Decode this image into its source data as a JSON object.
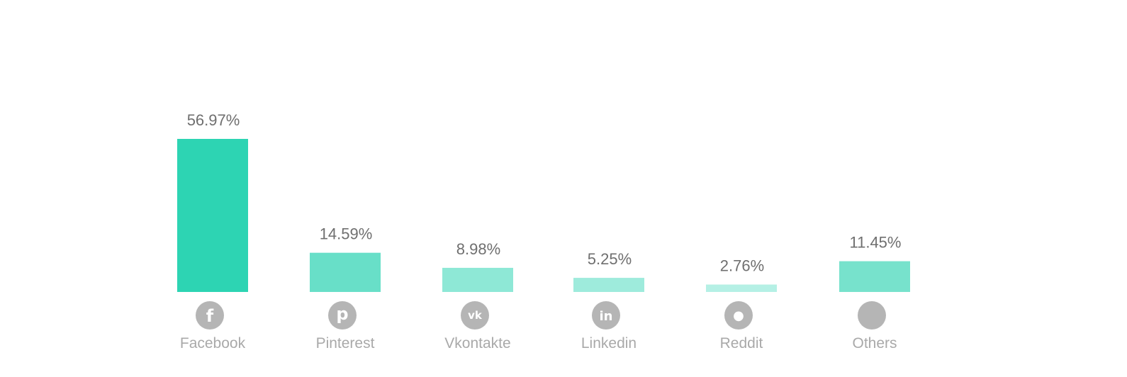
{
  "chart_data": {
    "type": "bar",
    "title": "",
    "xlabel": "",
    "ylabel": "",
    "ylim": [
      0,
      56.97
    ],
    "grid": false,
    "legend": "none",
    "value_suffix": "%",
    "categories": [
      "Facebook",
      "Pinterest",
      "Vkontakte",
      "Linkedin",
      "Reddit",
      "Others"
    ],
    "values": [
      56.97,
      14.59,
      8.98,
      5.25,
      2.76,
      11.45
    ],
    "data_labels": [
      "56.97%",
      "14.59%",
      "8.98%",
      "5.25%",
      "2.76%",
      "11.45%"
    ],
    "bar_colors": [
      "#2dd4b3",
      "#68dfc8",
      "#8ee8d6",
      "#9eebdc",
      "#b5f0e5",
      "#77e2cc"
    ],
    "icons": [
      "facebook-icon",
      "pinterest-icon",
      "vkontakte-icon",
      "linkedin-icon",
      "reddit-icon",
      "others-icon"
    ],
    "icon_color": "#b5b5b5"
  }
}
